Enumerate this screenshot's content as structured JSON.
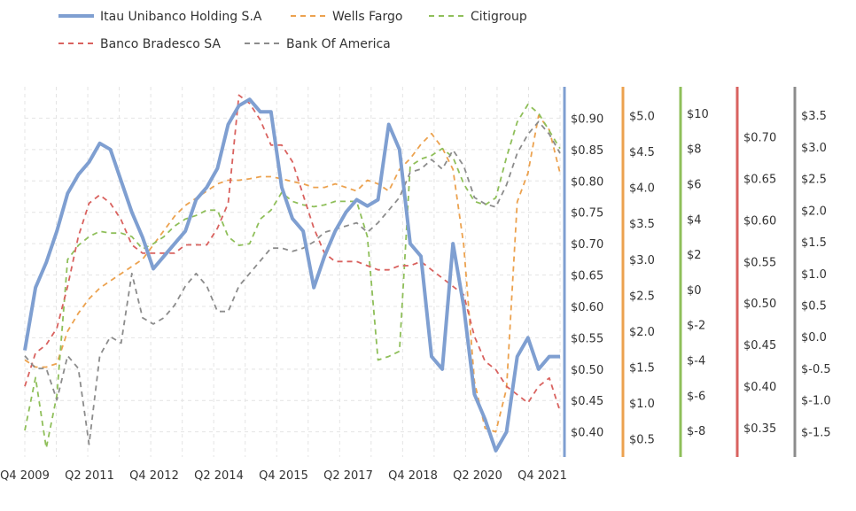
{
  "chart_data": {
    "type": "line",
    "title": "",
    "x_ticks": [
      "Q4 2009",
      "Q2 2011",
      "Q4 2012",
      "Q2 2014",
      "Q4 2015",
      "Q2 2017",
      "Q4 2018",
      "Q2 2020",
      "Q4 2021"
    ],
    "grid": true,
    "legend_position": "top-left",
    "axes": [
      {
        "id": "itau",
        "color": "#7f9fd1",
        "min": 0.36,
        "max": 0.95,
        "ticks": [
          0.4,
          0.45,
          0.5,
          0.55,
          0.6,
          0.65,
          0.7,
          0.75,
          0.8,
          0.85,
          0.9
        ],
        "labels": [
          "$0.40",
          "$0.45",
          "$0.50",
          "$0.55",
          "$0.60",
          "$0.65",
          "$0.70",
          "$0.75",
          "$0.80",
          "$0.85",
          "$0.90"
        ]
      },
      {
        "id": "wells",
        "color": "#eca24f",
        "min": 0.25,
        "max": 5.4,
        "ticks": [
          0.5,
          1.0,
          1.5,
          2.0,
          2.5,
          3.0,
          3.5,
          4.0,
          4.5,
          5.0
        ],
        "labels": [
          "$0.5",
          "$1.0",
          "$1.5",
          "$2.0",
          "$2.5",
          "$3.0",
          "$3.5",
          "$4.0",
          "$4.5",
          "$5.0"
        ]
      },
      {
        "id": "citi",
        "color": "#8fbf5a",
        "min": -9.5,
        "max": 11.5,
        "ticks": [
          -8,
          -6,
          -4,
          -2,
          0,
          2,
          4,
          6,
          8,
          10
        ],
        "labels": [
          "$-8",
          "$-6",
          "$-4",
          "$-2",
          "$0",
          "$2",
          "$4",
          "$6",
          "$8",
          "$10"
        ]
      },
      {
        "id": "bradesco",
        "color": "#d9625f",
        "min": 0.315,
        "max": 0.76,
        "ticks": [
          0.35,
          0.4,
          0.45,
          0.5,
          0.55,
          0.6,
          0.65,
          0.7
        ],
        "labels": [
          "$0.35",
          "$0.40",
          "$0.45",
          "$0.50",
          "$0.55",
          "$0.60",
          "$0.65",
          "$0.70"
        ]
      },
      {
        "id": "boa",
        "color": "#8c8c8c",
        "min": -1.9,
        "max": 3.95,
        "ticks": [
          -1.5,
          -1.0,
          -0.5,
          0.0,
          0.5,
          1.0,
          1.5,
          2.0,
          2.5,
          3.0,
          3.5
        ],
        "labels": [
          "$-1.5",
          "$-1.0",
          "$-0.5",
          "$0.0",
          "$0.5",
          "$1.0",
          "$1.5",
          "$2.0",
          "$2.5",
          "$3.0",
          "$3.5"
        ]
      }
    ],
    "series": [
      {
        "name": "Itau Unibanco Holding S.A",
        "axis": "itau",
        "color": "#7f9fd1",
        "style": "solid",
        "values": [
          0.53,
          0.63,
          0.67,
          0.72,
          0.78,
          0.81,
          0.83,
          0.86,
          0.85,
          0.8,
          0.75,
          0.71,
          0.66,
          0.68,
          0.7,
          0.72,
          0.77,
          0.79,
          0.82,
          0.89,
          0.92,
          0.93,
          0.91,
          0.91,
          0.79,
          0.74,
          0.72,
          0.63,
          0.68,
          0.72,
          0.75,
          0.77,
          0.76,
          0.77,
          0.89,
          0.85,
          0.7,
          0.68,
          0.52,
          0.5,
          0.7,
          0.6,
          0.46,
          0.42,
          0.37,
          0.4,
          0.52,
          0.55,
          0.5,
          0.52,
          0.52
        ]
      },
      {
        "name": "Wells Fargo",
        "axis": "wells",
        "color": "#eca24f",
        "style": "dashed",
        "values": [
          1.6,
          1.5,
          1.5,
          1.55,
          2.0,
          2.25,
          2.45,
          2.6,
          2.7,
          2.8,
          2.9,
          3.0,
          3.2,
          3.4,
          3.6,
          3.75,
          3.85,
          3.95,
          4.05,
          4.1,
          4.1,
          4.12,
          4.15,
          4.15,
          4.12,
          4.08,
          4.05,
          4.0,
          4.0,
          4.05,
          4.0,
          3.95,
          4.1,
          4.05,
          3.95,
          4.25,
          4.4,
          4.6,
          4.75,
          4.55,
          4.25,
          3.2,
          1.3,
          0.65,
          0.6,
          1.2,
          3.8,
          4.2,
          5.0,
          4.8,
          4.2
        ]
      },
      {
        "name": "Citigroup",
        "axis": "citi",
        "color": "#8fbf5a",
        "style": "dashed",
        "values": [
          -8,
          -5,
          -9,
          -6,
          1.7,
          2.5,
          3.0,
          3.3,
          3.2,
          3.2,
          3.0,
          2.3,
          2.6,
          3.0,
          3.6,
          4.0,
          4.2,
          4.5,
          4.5,
          3.0,
          2.5,
          2.6,
          4.0,
          4.5,
          5.5,
          5.0,
          4.8,
          4.7,
          4.8,
          5.0,
          5.0,
          5.0,
          3.0,
          -4.0,
          -3.8,
          -3.5,
          7.0,
          7.4,
          7.6,
          8.0,
          7.5,
          6.0,
          5.0,
          4.8,
          5.2,
          7.5,
          9.5,
          10.5,
          10.0,
          9.0,
          8.0
        ]
      },
      {
        "name": "Banco Bradesco SA",
        "axis": "bradesco",
        "color": "#d9625f",
        "style": "dashed",
        "values": [
          0.4,
          0.44,
          0.45,
          0.47,
          0.52,
          0.58,
          0.62,
          0.63,
          0.62,
          0.6,
          0.57,
          0.56,
          0.56,
          0.56,
          0.56,
          0.57,
          0.57,
          0.57,
          0.59,
          0.62,
          0.75,
          0.74,
          0.72,
          0.69,
          0.69,
          0.67,
          0.63,
          0.59,
          0.56,
          0.55,
          0.55,
          0.55,
          0.545,
          0.54,
          0.54,
          0.545,
          0.545,
          0.55,
          0.54,
          0.53,
          0.52,
          0.51,
          0.46,
          0.43,
          0.42,
          0.4,
          0.39,
          0.38,
          0.4,
          0.41,
          0.37
        ]
      },
      {
        "name": "Bank Of America",
        "axis": "boa",
        "color": "#8c8c8c",
        "style": "dashed",
        "values": [
          -0.3,
          -0.5,
          -0.5,
          -1.0,
          -0.3,
          -0.5,
          -1.7,
          -0.3,
          0.0,
          -0.1,
          1.0,
          0.3,
          0.2,
          0.3,
          0.5,
          0.8,
          1.0,
          0.8,
          0.4,
          0.4,
          0.8,
          1.0,
          1.2,
          1.4,
          1.4,
          1.35,
          1.4,
          1.5,
          1.65,
          1.7,
          1.75,
          1.8,
          1.65,
          1.8,
          2.0,
          2.2,
          2.6,
          2.65,
          2.8,
          2.65,
          2.95,
          2.7,
          2.2,
          2.1,
          2.05,
          2.4,
          2.9,
          3.2,
          3.4,
          3.2,
          2.9
        ]
      }
    ]
  }
}
